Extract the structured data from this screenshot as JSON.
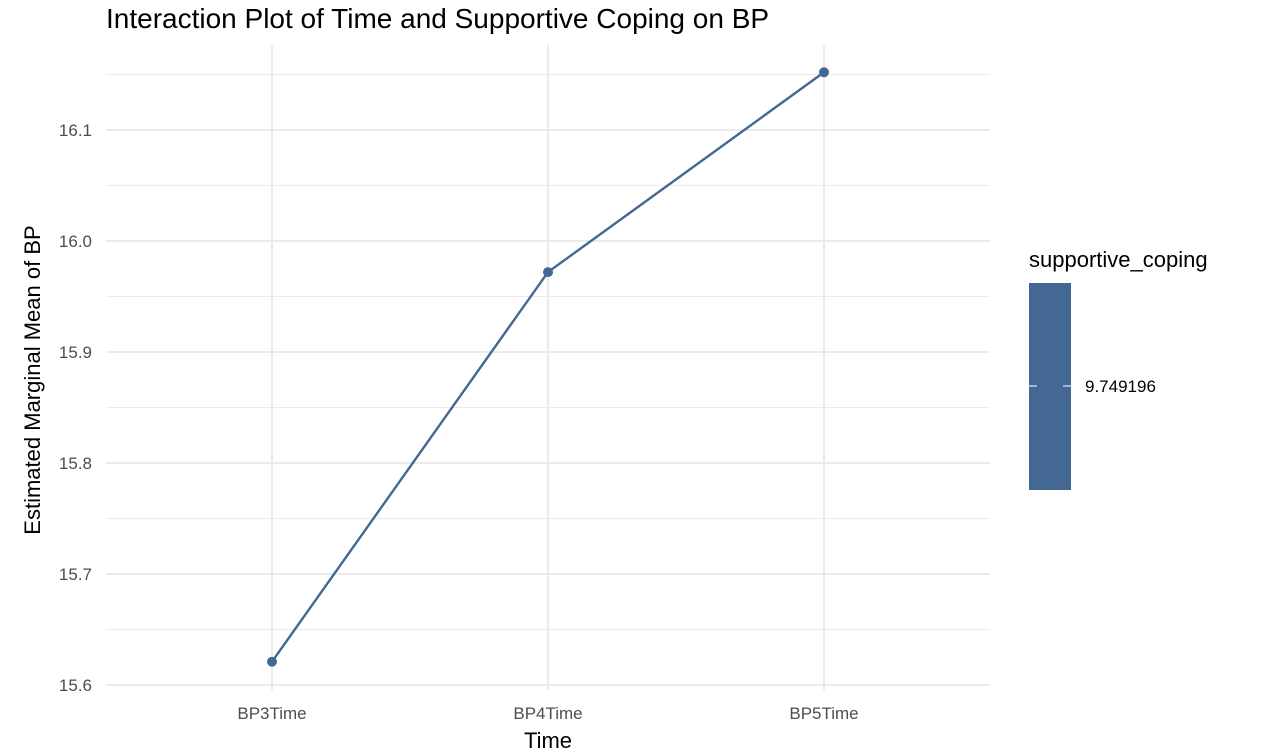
{
  "chart_data": {
    "type": "line",
    "title": "Interaction Plot of Time and Supportive Coping on BP",
    "xlabel": "Time",
    "ylabel": "Estimated Marginal Mean of BP",
    "categories": [
      "BP3Time",
      "BP4Time",
      "BP5Time"
    ],
    "series": [
      {
        "values": [
          15.621,
          15.972,
          16.152
        ],
        "color": "#436894"
      }
    ],
    "ylim": [
      15.6,
      16.152
    ],
    "yticks": [
      15.6,
      15.7,
      15.8,
      15.9,
      16.0,
      16.1
    ],
    "ytick_labels": [
      "15.6",
      "15.7",
      "15.8",
      "15.9",
      "16.0",
      "16.1"
    ],
    "grid": true,
    "legend": {
      "title": "supportive_coping",
      "label": "9.749196",
      "position": "right",
      "color": "#436894"
    },
    "colors": {
      "grid": "#ebebeb",
      "background": "#ffffff"
    }
  }
}
